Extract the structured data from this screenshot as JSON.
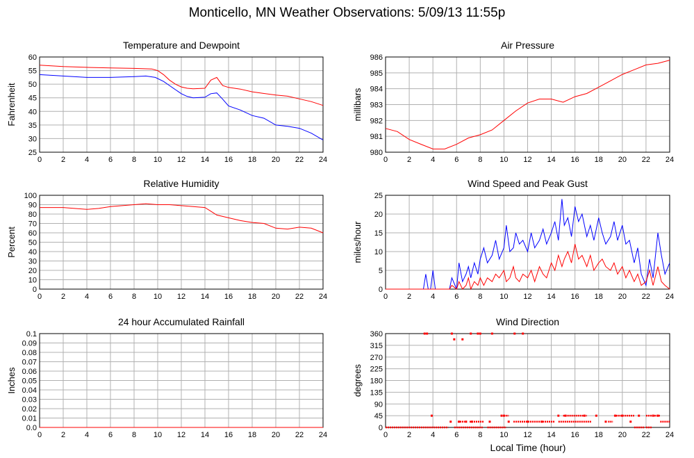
{
  "page": {
    "title": "Monticello, MN Weather Observations: 5/09/13 11:55p",
    "xaxis_title": "Local Time (hour)"
  },
  "colors": {
    "red": "#ff0000",
    "blue": "#0000ff",
    "grid": "#b0b0b0"
  },
  "chart_data": [
    {
      "id": "temperature",
      "type": "line",
      "title": "Temperature and Dewpoint",
      "ylabel": "Fahrenheit",
      "xlabel": "",
      "xlim": [
        0,
        24
      ],
      "ylim": [
        25,
        60
      ],
      "xticks": [
        0,
        2,
        4,
        6,
        8,
        10,
        12,
        14,
        16,
        18,
        20,
        22,
        24
      ],
      "yticks": [
        25,
        30,
        35,
        40,
        45,
        50,
        55,
        60
      ],
      "grid": true,
      "series": [
        {
          "color": "#ff0000",
          "x": [
            0,
            2,
            4,
            6,
            8,
            9.5,
            10,
            10.5,
            11,
            11.5,
            12,
            12.5,
            13,
            14,
            14.5,
            15,
            15.5,
            16,
            17,
            18,
            19,
            20,
            21,
            22,
            23,
            24
          ],
          "y": [
            57,
            56.5,
            56.2,
            56,
            55.8,
            55.6,
            55,
            53.5,
            51.5,
            50,
            49,
            48.5,
            48.3,
            48.5,
            51.5,
            52.5,
            49.5,
            48.8,
            48.2,
            47.2,
            46.6,
            46,
            45.6,
            44.6,
            43.6,
            42.2
          ]
        },
        {
          "color": "#0000ff",
          "x": [
            0,
            2,
            4,
            6,
            8,
            9,
            9.8,
            10.5,
            11,
            11.5,
            12,
            12.5,
            13,
            14,
            14.5,
            15,
            15.5,
            16,
            17,
            18,
            19,
            20,
            21,
            22,
            23,
            24
          ],
          "y": [
            53.5,
            53,
            52.5,
            52.5,
            52.8,
            53,
            52.5,
            51,
            49.5,
            48,
            46.5,
            45.5,
            45,
            45.2,
            46.5,
            46.8,
            44.5,
            42,
            40.5,
            38.5,
            37.5,
            35,
            34.5,
            33.8,
            32,
            29.5
          ]
        }
      ]
    },
    {
      "id": "pressure",
      "type": "line",
      "title": "Air Pressure",
      "ylabel": "millibars",
      "xlabel": "",
      "xlim": [
        0,
        24
      ],
      "ylim": [
        980,
        986
      ],
      "xticks": [
        0,
        2,
        4,
        6,
        8,
        10,
        12,
        14,
        16,
        18,
        20,
        22,
        24
      ],
      "yticks": [
        980,
        981,
        982,
        983,
        984,
        985,
        986
      ],
      "grid": true,
      "series": [
        {
          "color": "#ff0000",
          "x": [
            0,
            1,
            2,
            3,
            4,
            5,
            6,
            7,
            8,
            9,
            10,
            11,
            12,
            13,
            14,
            15,
            16,
            17,
            18,
            19,
            20,
            21,
            22,
            23,
            24
          ],
          "y": [
            981.5,
            981.3,
            980.8,
            980.5,
            980.2,
            980.2,
            980.5,
            980.9,
            981.1,
            981.4,
            982.0,
            982.6,
            983.1,
            983.35,
            983.35,
            983.15,
            983.5,
            983.7,
            984.1,
            984.5,
            984.9,
            985.2,
            985.5,
            985.6,
            985.8
          ]
        }
      ]
    },
    {
      "id": "humidity",
      "type": "line",
      "title": "Relative Humidity",
      "ylabel": "Percent",
      "xlabel": "",
      "xlim": [
        0,
        24
      ],
      "ylim": [
        0,
        100
      ],
      "xticks": [
        0,
        2,
        4,
        6,
        8,
        10,
        12,
        14,
        16,
        18,
        20,
        22,
        24
      ],
      "yticks": [
        0,
        10,
        20,
        30,
        40,
        50,
        60,
        70,
        80,
        90,
        100
      ],
      "grid": true,
      "series": [
        {
          "color": "#ff0000",
          "x": [
            0,
            2,
            4,
            5,
            6,
            7,
            8,
            9,
            10,
            11,
            12,
            13,
            14,
            14.5,
            15,
            16,
            17,
            18,
            19,
            20,
            21,
            22,
            23,
            24
          ],
          "y": [
            87,
            87,
            85,
            86,
            88,
            89,
            90,
            91,
            90,
            90,
            89,
            88,
            87,
            83,
            79,
            76,
            73,
            71,
            70,
            65,
            64,
            66,
            65,
            60
          ]
        }
      ]
    },
    {
      "id": "wind-speed",
      "type": "line",
      "title": "Wind Speed and Peak Gust",
      "ylabel": "miles/hour",
      "xlabel": "",
      "xlim": [
        0,
        24
      ],
      "ylim": [
        0,
        25
      ],
      "xticks": [
        0,
        2,
        4,
        6,
        8,
        10,
        12,
        14,
        16,
        18,
        20,
        22,
        24
      ],
      "yticks": [
        0,
        5,
        10,
        15,
        20,
        25
      ],
      "grid": true,
      "series": [
        {
          "color": "#0000ff",
          "x": [
            0,
            3.2,
            3.4,
            3.6,
            3.8,
            4.0,
            4.2,
            5.4,
            5.6,
            6.0,
            6.2,
            6.5,
            6.8,
            7.0,
            7.2,
            7.5,
            7.8,
            8.0,
            8.3,
            8.6,
            9.0,
            9.3,
            9.6,
            10.0,
            10.2,
            10.5,
            10.8,
            11.0,
            11.3,
            11.6,
            12.0,
            12.3,
            12.6,
            13.0,
            13.3,
            13.6,
            14.0,
            14.3,
            14.6,
            14.9,
            15.1,
            15.4,
            15.7,
            16.0,
            16.3,
            16.6,
            17.0,
            17.3,
            17.6,
            18.0,
            18.3,
            18.6,
            19.0,
            19.3,
            19.6,
            20.0,
            20.3,
            20.6,
            21.0,
            21.3,
            21.6,
            22.0,
            22.3,
            22.6,
            23.0,
            23.3,
            23.6,
            24.0
          ],
          "y": [
            0,
            0,
            4,
            0,
            0,
            5,
            0,
            0,
            3,
            0,
            7,
            2,
            4,
            6,
            3,
            7,
            4,
            8,
            11,
            7,
            9,
            13,
            8,
            11,
            17,
            10,
            11,
            15,
            12,
            13,
            10,
            15,
            11,
            13,
            16,
            12,
            15,
            18,
            13,
            24,
            17,
            19,
            14,
            22,
            18,
            20,
            14,
            17,
            13,
            19,
            15,
            12,
            14,
            18,
            13,
            17,
            12,
            13,
            7,
            11,
            4,
            1,
            8,
            3,
            15,
            9,
            4,
            7
          ]
        },
        {
          "color": "#ff0000",
          "x": [
            0,
            5.4,
            5.6,
            6.0,
            6.2,
            6.5,
            6.8,
            7.0,
            7.2,
            7.5,
            7.8,
            8.0,
            8.3,
            8.6,
            9.0,
            9.3,
            9.6,
            10.0,
            10.2,
            10.5,
            10.8,
            11.0,
            11.3,
            11.6,
            12.0,
            12.3,
            12.6,
            13.0,
            13.3,
            13.6,
            14.0,
            14.3,
            14.6,
            14.9,
            15.1,
            15.4,
            15.7,
            16.0,
            16.3,
            16.6,
            17.0,
            17.3,
            17.6,
            18.0,
            18.3,
            18.6,
            19.0,
            19.3,
            19.6,
            20.0,
            20.3,
            20.6,
            21.0,
            21.3,
            21.6,
            22.0,
            22.3,
            22.6,
            23.0,
            23.3,
            23.6,
            24.0
          ],
          "y": [
            0,
            0,
            1,
            0,
            2,
            0,
            1,
            3,
            0,
            2,
            1,
            3,
            1,
            3,
            2,
            4,
            3,
            5,
            2,
            3,
            6,
            3,
            2,
            4,
            3,
            5,
            2,
            6,
            4,
            3,
            7,
            5,
            9,
            6,
            8,
            10,
            7,
            12,
            8,
            9,
            6,
            9,
            5,
            7,
            8,
            6,
            5,
            7,
            4,
            6,
            3,
            5,
            2,
            4,
            1,
            2,
            5,
            1,
            6,
            2,
            1,
            0
          ]
        }
      ]
    },
    {
      "id": "rainfall",
      "type": "line",
      "title": "24 hour Accumulated Rainfall",
      "ylabel": "Inches",
      "xlabel": "",
      "xlim": [
        0,
        24
      ],
      "ylim": [
        0,
        0.1
      ],
      "xticks": [
        0,
        2,
        4,
        6,
        8,
        10,
        12,
        14,
        16,
        18,
        20,
        22,
        24
      ],
      "yticks": [
        "0.0",
        "0.01",
        "0.02",
        "0.03",
        "0.04",
        "0.05",
        "0.06",
        "0.07",
        "0.08",
        "0.09",
        "0.1"
      ],
      "grid": true,
      "series": [
        {
          "color": "#ff0000",
          "x": [
            0,
            24
          ],
          "y": [
            0,
            0
          ]
        }
      ]
    },
    {
      "id": "wind-direction",
      "type": "scatter",
      "title": "Wind Direction",
      "ylabel": "degrees",
      "xlabel": "Local Time (hour)",
      "xlim": [
        0,
        24
      ],
      "ylim": [
        0,
        360
      ],
      "xticks": [
        0,
        2,
        4,
        6,
        8,
        10,
        12,
        14,
        16,
        18,
        20,
        22,
        24
      ],
      "yticks": [
        0,
        45,
        90,
        135,
        180,
        225,
        270,
        315,
        360
      ],
      "grid": true,
      "series": [
        {
          "color": "#ff0000",
          "x": [
            3.3,
            3.5,
            5.6,
            5.8,
            6.5,
            7.2,
            7.8,
            8.0,
            9.0,
            10.9,
            11.6,
            3.9,
            5.5,
            6.2,
            6.8,
            7.3,
            8.8,
            9.8,
            10.0,
            10.4,
            12.0,
            13.2,
            14.6,
            15.2,
            16.8,
            17.8,
            18.6,
            19.4,
            20.0,
            20.7,
            21.4,
            22.6,
            23.0
          ],
          "y": [
            360,
            360,
            360,
            338,
            338,
            360,
            360,
            360,
            360,
            360,
            360,
            45,
            22,
            22,
            22,
            22,
            22,
            45,
            45,
            22,
            22,
            22,
            45,
            45,
            45,
            45,
            22,
            45,
            45,
            22,
            45,
            45,
            45
          ],
          "bands": [
            {
              "from": 0,
              "to": 5.3,
              "value": 0
            },
            {
              "from": 5.8,
              "to": 8.2,
              "value": 0
            },
            {
              "from": 8.6,
              "to": 10.2,
              "value": 0
            },
            {
              "from": 6.1,
              "to": 6.7,
              "value": 22
            },
            {
              "from": 7.1,
              "to": 8.3,
              "value": 22
            },
            {
              "from": 10.8,
              "to": 14.3,
              "value": 22
            },
            {
              "from": 14.6,
              "to": 17.4,
              "value": 22
            },
            {
              "from": 10.0,
              "to": 10.4,
              "value": 45
            },
            {
              "from": 15.0,
              "to": 17.0,
              "value": 45
            },
            {
              "from": 19.3,
              "to": 21.0,
              "value": 45
            },
            {
              "from": 22.0,
              "to": 23.2,
              "value": 45
            },
            {
              "from": 18.8,
              "to": 19.2,
              "value": 22
            },
            {
              "from": 23.2,
              "to": 24.0,
              "value": 22
            },
            {
              "from": 21.0,
              "to": 21.9,
              "value": 0
            },
            {
              "from": 22.0,
              "to": 22.5,
              "value": 0
            }
          ]
        }
      ]
    }
  ]
}
